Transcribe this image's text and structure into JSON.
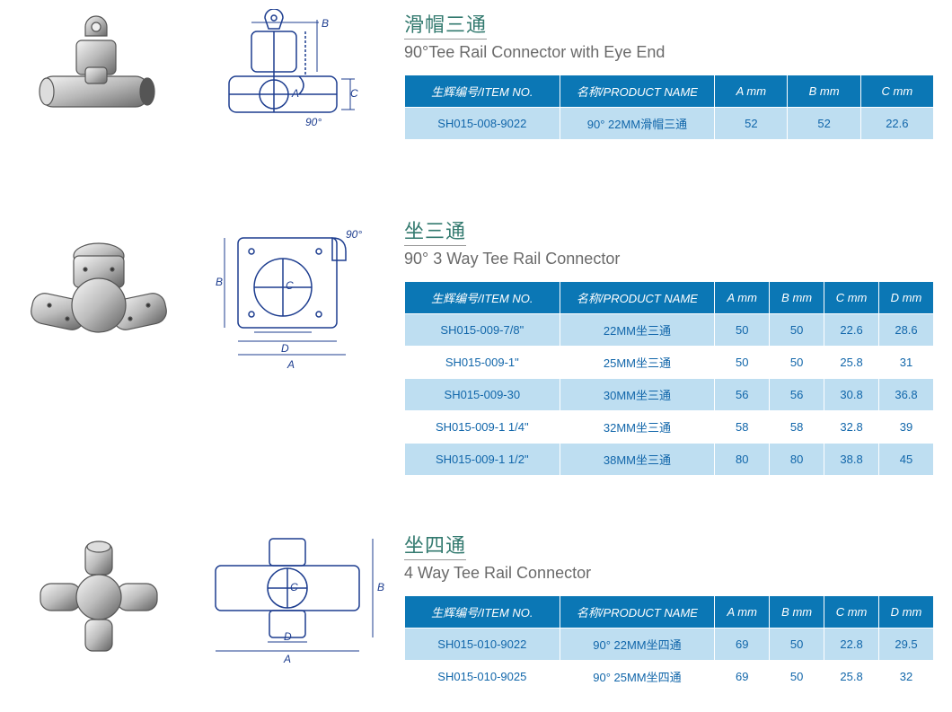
{
  "colors": {
    "title_cn": "#337a6f",
    "title_en": "#6a6a6a",
    "th_bg": "#0b77b5",
    "row_odd_bg": "#bedef1",
    "row_even_bg": "#ffffff",
    "cell_text": "#1166aa"
  },
  "products": [
    {
      "title_cn": "滑帽三通",
      "title_en": "90°Tee Rail Connector with Eye End",
      "table_id": "t1",
      "columns": [
        "生辉编号/ITEM NO.",
        "名称/PRODUCT NAME",
        "A mm",
        "B mm",
        "C mm"
      ],
      "col_classes": [
        "col-item",
        "col-name",
        "col-dim-wide",
        "col-dim-wide",
        "col-dim-wide"
      ],
      "rows": [
        [
          "SH015-008-9022",
          "90° 22MM滑帽三通",
          "52",
          "52",
          "22.6"
        ]
      ],
      "diagram_labels": [
        "A",
        "B",
        "C",
        "90°"
      ]
    },
    {
      "title_cn": "坐三通",
      "title_en": "90° 3 Way Tee Rail Connector",
      "table_id": "t2",
      "columns": [
        "生辉编号/ITEM NO.",
        "名称/PRODUCT NAME",
        "A mm",
        "B mm",
        "C mm",
        "D mm"
      ],
      "col_classes": [
        "col-item",
        "col-name",
        "col-dim",
        "col-dim",
        "col-dim",
        "col-dim"
      ],
      "rows": [
        [
          "SH015-009-7/8\"",
          "22MM坐三通",
          "50",
          "50",
          "22.6",
          "28.6"
        ],
        [
          "SH015-009-1\"",
          "25MM坐三通",
          "50",
          "50",
          "25.8",
          "31"
        ],
        [
          "SH015-009-30",
          "30MM坐三通",
          "56",
          "56",
          "30.8",
          "36.8"
        ],
        [
          "SH015-009-1 1/4\"",
          "32MM坐三通",
          "58",
          "58",
          "32.8",
          "39"
        ],
        [
          "SH015-009-1 1/2\"",
          "38MM坐三通",
          "80",
          "80",
          "38.8",
          "45"
        ]
      ],
      "diagram_labels": [
        "A",
        "B",
        "C",
        "D",
        "90°"
      ]
    },
    {
      "title_cn": "坐四通",
      "title_en": "4 Way Tee Rail Connector",
      "table_id": "t3",
      "columns": [
        "生辉编号/ITEM NO.",
        "名称/PRODUCT NAME",
        "A mm",
        "B mm",
        "C mm",
        "D mm"
      ],
      "col_classes": [
        "col-item",
        "col-name",
        "col-dim",
        "col-dim",
        "col-dim",
        "col-dim"
      ],
      "rows": [
        [
          "SH015-010-9022",
          "90° 22MM坐四通",
          "69",
          "50",
          "22.8",
          "29.5"
        ],
        [
          "SH015-010-9025",
          "90° 25MM坐四通",
          "69",
          "50",
          "25.8",
          "32"
        ]
      ],
      "diagram_labels": [
        "A",
        "B",
        "C",
        "D"
      ]
    }
  ]
}
